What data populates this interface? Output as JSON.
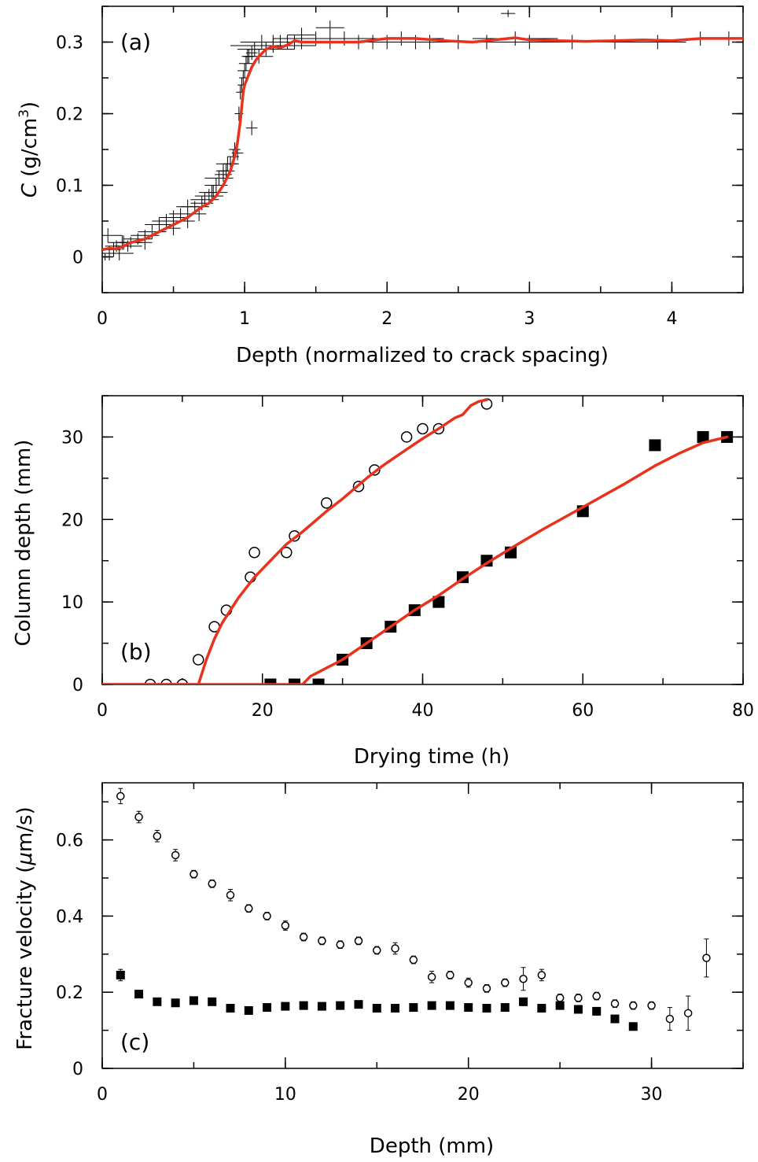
{
  "chart_data": [
    {
      "type": "scatter",
      "panel_label": "(a)",
      "xlabel": "Depth (normalized to crack spacing)",
      "ylabel_italic": "C",
      "ylabel_unit": " (g/cm",
      "ylabel_sup": "3",
      "ylabel_close": ")",
      "xlim": [
        0,
        4.5
      ],
      "ylim": [
        -0.05,
        0.35
      ],
      "xticks": [
        0,
        1,
        2,
        3,
        4
      ],
      "xtick_labels": [
        "0",
        "1",
        "2",
        "3",
        "4"
      ],
      "yticks": [
        0,
        0.1,
        0.2,
        0.3
      ],
      "ytick_labels": [
        "0",
        "0.1",
        "0.2",
        "0.3"
      ],
      "series": [
        {
          "style": "cross",
          "x": [
            0.02,
            0.05,
            0.08,
            0.1,
            0.12,
            0.15,
            0.18,
            0.2,
            0.25,
            0.3,
            0.35,
            0.4,
            0.45,
            0.5,
            0.55,
            0.6,
            0.65,
            0.7,
            0.72,
            0.75,
            0.78,
            0.8,
            0.82,
            0.85,
            0.87,
            0.88,
            0.9,
            0.92,
            0.93,
            0.95,
            0.96,
            0.97,
            0.98,
            0.99,
            1.0,
            1.01,
            1.02,
            1.03,
            1.05,
            1.07,
            1.1,
            1.12,
            1.15,
            1.2,
            1.25,
            1.3,
            1.35,
            1.4,
            1.5,
            1.6,
            1.7,
            1.8,
            1.9,
            2.0,
            2.1,
            2.2,
            2.3,
            2.5,
            2.7,
            2.9,
            3.0,
            3.3,
            3.6,
            3.9,
            4.2,
            4.4,
            0.04,
            0.14,
            0.3,
            0.5,
            0.6,
            0.68,
            1.05,
            0.77,
            0.85,
            1.2,
            1.4,
            1.6,
            2.85
          ],
          "y": [
            0.0,
            0.005,
            0.01,
            0.015,
            0.005,
            0.02,
            0.015,
            0.02,
            0.025,
            0.03,
            0.035,
            0.045,
            0.05,
            0.055,
            0.06,
            0.07,
            0.07,
            0.075,
            0.08,
            0.085,
            0.09,
            0.1,
            0.11,
            0.115,
            0.12,
            0.13,
            0.13,
            0.14,
            0.15,
            0.145,
            0.2,
            0.23,
            0.24,
            0.25,
            0.26,
            0.27,
            0.28,
            0.28,
            0.285,
            0.29,
            0.28,
            0.3,
            0.29,
            0.295,
            0.3,
            0.3,
            0.3,
            0.3,
            0.305,
            0.3,
            0.305,
            0.3,
            0.3,
            0.3,
            0.305,
            0.3,
            0.3,
            0.3,
            0.3,
            0.305,
            0.3,
            0.3,
            0.3,
            0.3,
            0.305,
            0.305,
            0.03,
            0.02,
            0.02,
            0.04,
            0.05,
            0.06,
            0.18,
            0.09,
            0.12,
            0.3,
            0.31,
            0.32,
            0.34
          ],
          "xerr": [
            0.02,
            0.05,
            0.05,
            0.08,
            0.1,
            0.05,
            0.1,
            0.08,
            0.1,
            0.1,
            0.1,
            0.1,
            0.1,
            0.1,
            0.08,
            0.08,
            0.1,
            0.08,
            0.1,
            0.1,
            0.1,
            0.08,
            0.1,
            0.06,
            0.06,
            0.08,
            0.05,
            0.04,
            0.04,
            0.04,
            0.03,
            0.03,
            0.03,
            0.03,
            0.05,
            0.05,
            0.04,
            0.04,
            0.04,
            0.05,
            0.1,
            0.15,
            0.2,
            0.3,
            0.2,
            0.2,
            0.3,
            0.3,
            0.3,
            0.3,
            0.3,
            0.3,
            0.3,
            0.3,
            0.3,
            0.3,
            0.3,
            0.4,
            0.3,
            0.3,
            0.3,
            0.3,
            0.3,
            0.2,
            0.1,
            0.1,
            0.1,
            0.1,
            0.05,
            0.05,
            0.05,
            0.05,
            0.04,
            0.05,
            0.05,
            0.15,
            0.1,
            0.1,
            0.05
          ],
          "yerr": [
            0.005,
            0.01,
            0.01,
            0.008,
            0.01,
            0.01,
            0.008,
            0.008,
            0.008,
            0.008,
            0.01,
            0.01,
            0.01,
            0.01,
            0.008,
            0.01,
            0.008,
            0.01,
            0.01,
            0.01,
            0.01,
            0.01,
            0.01,
            0.01,
            0.01,
            0.01,
            0.01,
            0.01,
            0.01,
            0.01,
            0.01,
            0.01,
            0.01,
            0.01,
            0.01,
            0.01,
            0.01,
            0.01,
            0.01,
            0.01,
            0.01,
            0.01,
            0.01,
            0.01,
            0.01,
            0.01,
            0.01,
            0.01,
            0.01,
            0.01,
            0.01,
            0.01,
            0.01,
            0.01,
            0.01,
            0.01,
            0.01,
            0.01,
            0.01,
            0.01,
            0.01,
            0.01,
            0.01,
            0.01,
            0.01,
            0.01,
            0.01,
            0.01,
            0.01,
            0.01,
            0.01,
            0.01,
            0.01,
            0.01,
            0.01,
            0.01,
            0.01,
            0.01,
            0.005
          ]
        },
        {
          "style": "red-line",
          "x": [
            0,
            0.05,
            0.1,
            0.15,
            0.2,
            0.3,
            0.4,
            0.5,
            0.6,
            0.7,
            0.75,
            0.8,
            0.85,
            0.9,
            0.93,
            0.95,
            0.97,
            0.98,
            0.99,
            1.0,
            1.02,
            1.05,
            1.08,
            1.1,
            1.15,
            1.2,
            1.25,
            1.3,
            1.35,
            1.4,
            1.5,
            1.6,
            1.7,
            1.8,
            2.0,
            2.2,
            2.4,
            2.6,
            2.8,
            2.9,
            3.0,
            3.2,
            3.4,
            3.6,
            3.8,
            4.0,
            4.2,
            4.5
          ],
          "y": [
            0.01,
            0.012,
            0.011,
            0.015,
            0.02,
            0.025,
            0.035,
            0.045,
            0.055,
            0.07,
            0.075,
            0.085,
            0.1,
            0.12,
            0.14,
            0.16,
            0.19,
            0.21,
            0.23,
            0.24,
            0.25,
            0.265,
            0.275,
            0.28,
            0.29,
            0.294,
            0.292,
            0.296,
            0.302,
            0.3,
            0.3,
            0.3,
            0.3,
            0.3,
            0.305,
            0.305,
            0.302,
            0.3,
            0.304,
            0.306,
            0.303,
            0.302,
            0.301,
            0.302,
            0.303,
            0.302,
            0.305,
            0.305
          ]
        }
      ]
    },
    {
      "type": "scatter",
      "panel_label": "(b)",
      "xlabel": "Drying time (h)",
      "ylabel": "Column depth (mm)",
      "xlim": [
        0,
        80
      ],
      "ylim": [
        0,
        35
      ],
      "xticks": [
        0,
        20,
        40,
        60,
        80
      ],
      "xtick_labels": [
        "0",
        "20",
        "40",
        "60",
        "80"
      ],
      "yticks": [
        0,
        10,
        20,
        30
      ],
      "ytick_labels": [
        "0",
        "10",
        "20",
        "30"
      ],
      "series": [
        {
          "style": "open-circle",
          "x": [
            6,
            8,
            10,
            12,
            14,
            15.5,
            18.5,
            19,
            23,
            24,
            28,
            32,
            34,
            38,
            40,
            42,
            48
          ],
          "y": [
            0,
            0,
            0,
            3,
            7,
            9,
            13,
            16,
            16,
            18,
            22,
            24,
            26,
            30,
            31,
            31,
            34
          ]
        },
        {
          "style": "filled-square",
          "x": [
            21,
            24,
            27,
            30,
            33,
            36,
            39,
            42,
            45,
            48,
            51,
            60,
            69,
            75,
            78
          ],
          "y": [
            0,
            0,
            0,
            3,
            5,
            7,
            9,
            10,
            13,
            15,
            16,
            21,
            29,
            30,
            30
          ]
        },
        {
          "style": "red-line",
          "x": [
            0,
            11,
            12,
            13,
            14,
            15,
            17,
            19,
            21,
            23,
            25,
            28,
            30,
            33,
            35,
            38,
            40,
            42,
            44,
            45,
            46,
            47,
            48
          ],
          "y": [
            0,
            0,
            0,
            3,
            5.5,
            7.5,
            10.5,
            13,
            15,
            17,
            18.5,
            21,
            22.5,
            25,
            26.5,
            28.5,
            29.8,
            31,
            32.3,
            32.7,
            33.8,
            34.3,
            34.5
          ]
        },
        {
          "style": "red-line",
          "x": [
            0,
            25,
            25.5,
            26,
            27,
            30,
            33,
            36,
            39,
            42,
            45,
            48,
            51,
            55,
            60,
            65,
            69,
            72,
            75,
            78
          ],
          "y": [
            0,
            0,
            0.5,
            1,
            1.5,
            3,
            5,
            7,
            9,
            10.8,
            12.8,
            14.7,
            16.5,
            18.8,
            21.5,
            24.2,
            26.5,
            28,
            29.3,
            30
          ]
        }
      ]
    },
    {
      "type": "scatter",
      "panel_label": "(c)",
      "xlabel": "Depth (mm)",
      "ylabel_pre": "Fracture velocity (",
      "ylabel_mu": "μ",
      "ylabel_post": "m/s)",
      "xlim": [
        0,
        35
      ],
      "ylim": [
        0,
        0.75
      ],
      "xticks": [
        0,
        10,
        20,
        30
      ],
      "xtick_labels": [
        "0",
        "10",
        "20",
        "30"
      ],
      "yticks": [
        0,
        0.2,
        0.4,
        0.6
      ],
      "ytick_labels": [
        "0",
        "0.2",
        "0.4",
        "0.6"
      ],
      "series": [
        {
          "style": "open-circle",
          "x": [
            1,
            2,
            3,
            4,
            5,
            6,
            7,
            8,
            9,
            10,
            11,
            12,
            13,
            14,
            15,
            16,
            17,
            18,
            19,
            20,
            21,
            22,
            23,
            24,
            25,
            26,
            27,
            28,
            29,
            30,
            31,
            32,
            33
          ],
          "y": [
            0.715,
            0.66,
            0.61,
            0.56,
            0.51,
            0.485,
            0.455,
            0.42,
            0.4,
            0.375,
            0.345,
            0.335,
            0.325,
            0.335,
            0.31,
            0.315,
            0.285,
            0.24,
            0.245,
            0.225,
            0.21,
            0.225,
            0.235,
            0.245,
            0.185,
            0.185,
            0.19,
            0.17,
            0.165,
            0.165,
            0.13,
            0.145,
            0.29
          ],
          "yerr": [
            0.02,
            0.015,
            0.015,
            0.015,
            0.01,
            0.01,
            0.015,
            0.01,
            0.01,
            0.012,
            0.01,
            0.01,
            0.01,
            0.01,
            0.01,
            0.015,
            0.01,
            0.015,
            0.01,
            0.012,
            0.01,
            0.01,
            0.03,
            0.015,
            0.01,
            0.01,
            0.01,
            0.01,
            0.01,
            0.01,
            0.03,
            0.045,
            0.05
          ]
        },
        {
          "style": "filled-square",
          "x": [
            1,
            2,
            3,
            4,
            5,
            6,
            7,
            8,
            9,
            10,
            11,
            12,
            13,
            14,
            15,
            16,
            17,
            18,
            19,
            20,
            21,
            22,
            23,
            24,
            25,
            26,
            27,
            28,
            29
          ],
          "y": [
            0.245,
            0.195,
            0.175,
            0.172,
            0.178,
            0.175,
            0.158,
            0.152,
            0.16,
            0.163,
            0.165,
            0.163,
            0.165,
            0.168,
            0.158,
            0.158,
            0.16,
            0.165,
            0.165,
            0.16,
            0.158,
            0.16,
            0.175,
            0.158,
            0.165,
            0.155,
            0.15,
            0.13,
            0.11
          ],
          "yerr": [
            0.015,
            0.01,
            0.008,
            0.008,
            0.008,
            0.008,
            0.008,
            0.008,
            0.008,
            0.008,
            0.008,
            0.008,
            0.008,
            0.008,
            0.008,
            0.008,
            0.008,
            0.008,
            0.008,
            0.008,
            0.008,
            0.008,
            0.01,
            0.008,
            0.008,
            0.008,
            0.01,
            0.008,
            0.008
          ]
        }
      ]
    }
  ]
}
